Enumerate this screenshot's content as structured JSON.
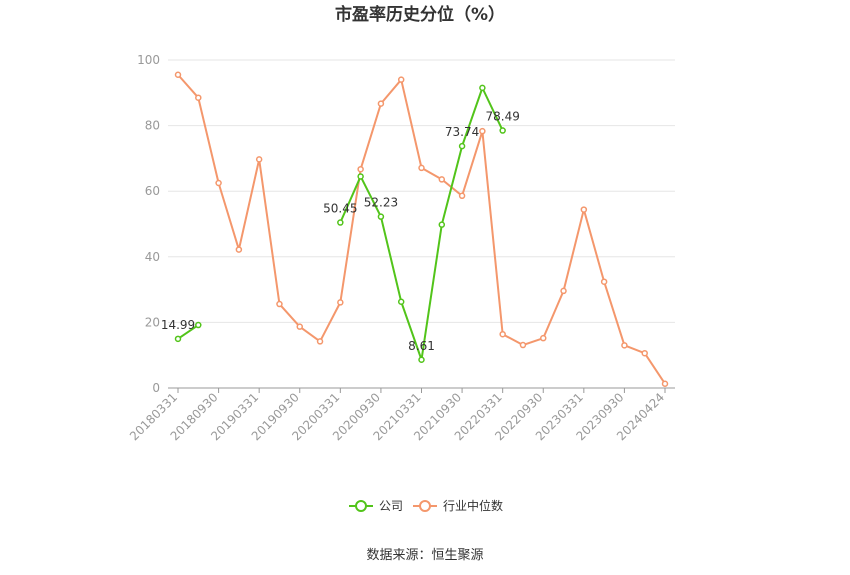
{
  "chart_data": {
    "type": "line",
    "title": "市盈率历史分位（%）",
    "source": "数据来源：恒生聚源",
    "ylim": [
      0,
      100
    ],
    "yticks": [
      0,
      20,
      40,
      60,
      80,
      100
    ],
    "grid": true,
    "legend_position": "bottom",
    "x": [
      "20180331",
      "20180630",
      "20180930",
      "20181231",
      "20190331",
      "20190630",
      "20190930",
      "20191231",
      "20200331",
      "20200630",
      "20200930",
      "20201231",
      "20210331",
      "20210630",
      "20210930",
      "20211231",
      "20220331",
      "20220630",
      "20220930",
      "20221231",
      "20230331",
      "20230630",
      "20230930",
      "20231231",
      "20240424"
    ],
    "x_tick_labels": [
      "20180331",
      "20180930",
      "20190331",
      "20190930",
      "20200331",
      "20200930",
      "20210331",
      "20210930",
      "20220331",
      "20220930",
      "20230331",
      "20230930",
      "20240424"
    ],
    "series": [
      {
        "name": "公司",
        "color": "#52c41a",
        "values": [
          14.99,
          19.2,
          null,
          null,
          null,
          null,
          null,
          null,
          50.45,
          64.5,
          52.23,
          26.3,
          8.61,
          49.8,
          73.74,
          91.5,
          78.49,
          null,
          null,
          null,
          null,
          null,
          null,
          null,
          null
        ],
        "data_labels": [
          {
            "index": 0,
            "text": "14.99"
          },
          {
            "index": 8,
            "text": "50.45"
          },
          {
            "index": 10,
            "text": "52.23"
          },
          {
            "index": 12,
            "text": "8.61"
          },
          {
            "index": 14,
            "text": "73.74"
          },
          {
            "index": 16,
            "text": "78.49"
          }
        ]
      },
      {
        "name": "行业中位数",
        "color": "#f4976c",
        "values": [
          95.5,
          88.5,
          62.5,
          42.2,
          69.7,
          25.6,
          18.7,
          14.2,
          26.1,
          66.7,
          86.7,
          94.0,
          67.1,
          63.6,
          58.6,
          78.3,
          16.4,
          13.1,
          15.2,
          29.6,
          54.4,
          32.4,
          13.0,
          10.6,
          1.3
        ]
      }
    ]
  }
}
